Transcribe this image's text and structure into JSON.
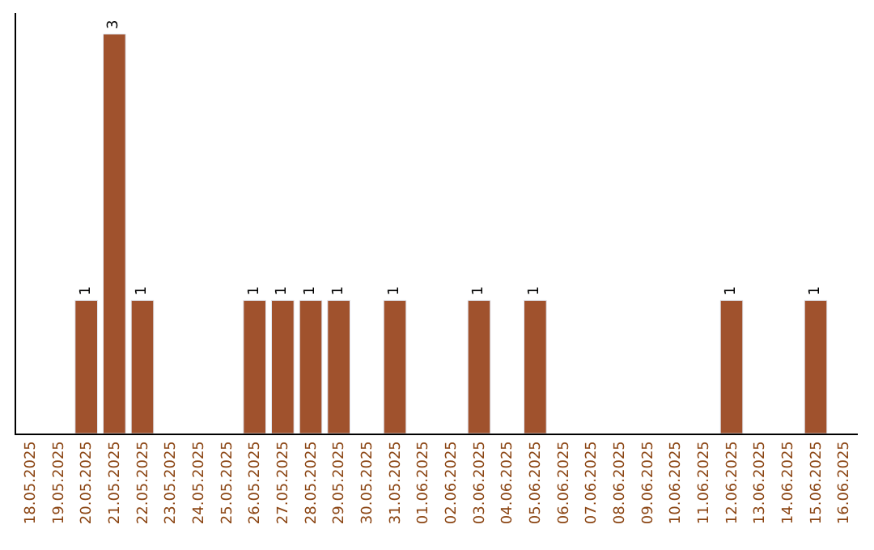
{
  "chart_data": {
    "type": "bar",
    "categories": [
      "18.05.2025",
      "19.05.2025",
      "20.05.2025",
      "21.05.2025",
      "22.05.2025",
      "23.05.2025",
      "24.05.2025",
      "25.05.2025",
      "26.05.2025",
      "27.05.2025",
      "28.05.2025",
      "29.05.2025",
      "30.05.2025",
      "31.05.2025",
      "01.06.2025",
      "02.06.2025",
      "03.06.2025",
      "04.06.2025",
      "05.06.2025",
      "06.06.2025",
      "07.06.2025",
      "08.06.2025",
      "09.06.2025",
      "10.06.2025",
      "11.06.2025",
      "12.06.2025",
      "13.06.2025",
      "14.06.2025",
      "15.06.2025",
      "16.06.2025"
    ],
    "values": [
      null,
      null,
      1,
      3,
      1,
      null,
      null,
      null,
      1,
      1,
      1,
      1,
      null,
      1,
      null,
      null,
      1,
      null,
      1,
      null,
      null,
      null,
      null,
      null,
      null,
      1,
      null,
      null,
      1,
      null
    ],
    "color": "#a0522d",
    "data_labels": true,
    "legend": false,
    "tick_labels": "x"
  }
}
